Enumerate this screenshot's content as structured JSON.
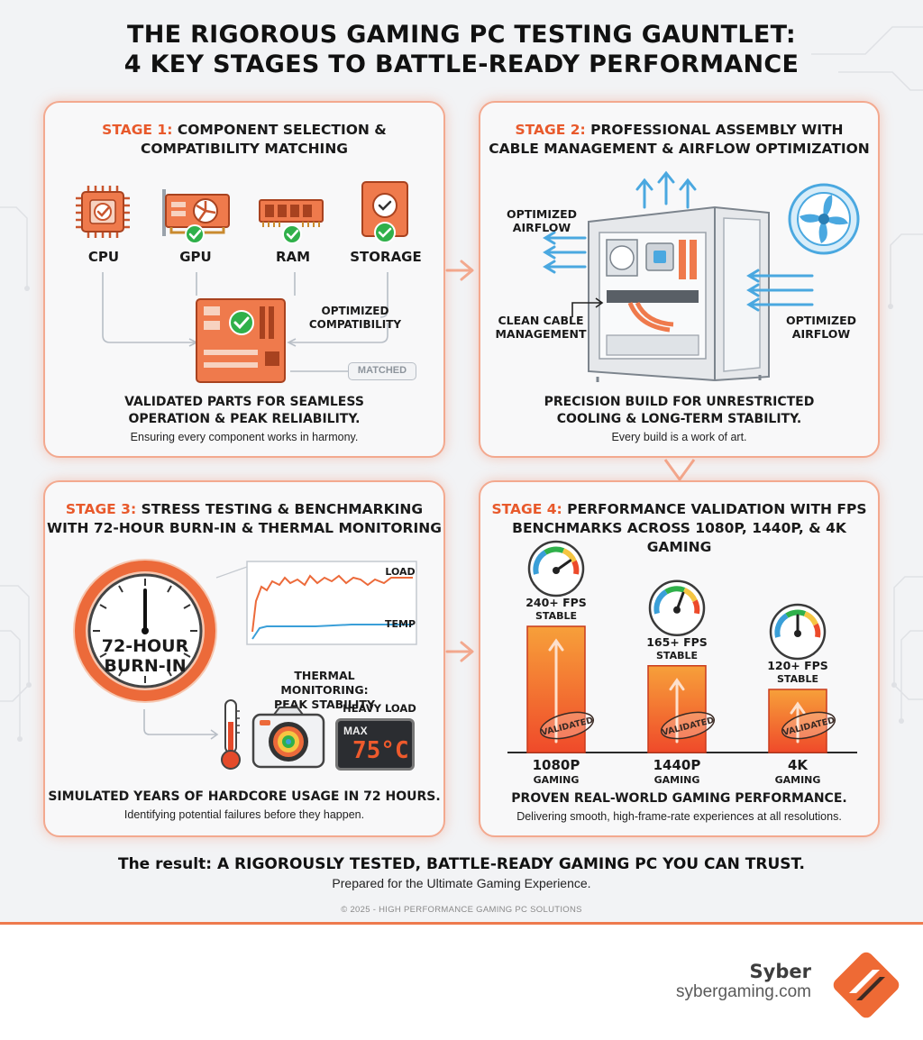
{
  "title": {
    "line1": "THE RIGOROUS GAMING PC TESTING GAUNTLET:",
    "line2": "4 KEY STAGES TO BATTLE-READY PERFORMANCE"
  },
  "stage1": {
    "tag": "STAGE 1:",
    "title_rest": "COMPONENT SELECTION &",
    "title_line2": "COMPATIBILITY MATCHING",
    "components": [
      "CPU",
      "GPU",
      "RAM",
      "STORAGE"
    ],
    "optimized_line1": "OPTIMIZED",
    "optimized_line2": "COMPATIBILITY",
    "matched": "MATCHED",
    "desc_line1": "VALIDATED PARTS FOR SEAMLESS",
    "desc_line2": "OPERATION & PEAK RELIABILITY.",
    "desc_sub": "Ensuring every component works in harmony."
  },
  "stage2": {
    "tag": "STAGE 2:",
    "title_rest": "PROFESSIONAL ASSEMBLY WITH",
    "title_line2": "CABLE MANAGEMENT & AIRFLOW OPTIMIZATION",
    "airflow_left_1": "OPTIMIZED",
    "airflow_left_2": "AIRFLOW",
    "cable_1": "CLEAN CABLE",
    "cable_2": "MANAGEMENT",
    "airflow_right_1": "OPTIMIZED",
    "airflow_right_2": "AIRFLOW",
    "desc_line1": "PRECISION BUILD FOR UNRESTRICTED",
    "desc_line2": "COOLING & LONG-TERM STABILITY.",
    "desc_sub": "Every build is a work of art."
  },
  "stage3": {
    "tag": "STAGE 3:",
    "title_rest": "STRESS TESTING & BENCHMARKING",
    "title_line2": "WITH 72-HOUR BURN-IN & THERMAL MONITORING",
    "clock_line1": "72-HOUR",
    "clock_line2": "BURN-IN",
    "graph_load": "LOAD",
    "graph_temp": "TEMP",
    "thermal_line1": "THERMAL MONITORING:",
    "thermal_line2": "PEAK STABILITY",
    "heavy_load": "HEAVY LOAD",
    "max": "MAX",
    "temp_readout": "75°C",
    "desc_line1": "SIMULATED YEARS OF HARDCORE USAGE IN 72 HOURS.",
    "desc_sub": "Identifying potential failures before they happen."
  },
  "stage4": {
    "tag": "STAGE 4:",
    "title_rest": "PERFORMANCE VALIDATION WITH FPS",
    "title_line2": "BENCHMARKS ACROSS 1080P, 1440P, & 4K GAMING",
    "bars": [
      {
        "fps": "240+ FPS",
        "stable": "STABLE",
        "res": "1080P",
        "gaming": "GAMING",
        "stamp": "VALIDATED",
        "value": 240
      },
      {
        "fps": "165+ FPS",
        "stable": "STABLE",
        "res": "1440P",
        "gaming": "GAMING",
        "stamp": "VALIDATED",
        "value": 165
      },
      {
        "fps": "120+ FPS",
        "stable": "STABLE",
        "res": "4K",
        "gaming": "GAMING",
        "stamp": "VALIDATED",
        "value": 120
      }
    ],
    "desc_line1": "PROVEN REAL-WORLD GAMING PERFORMANCE.",
    "desc_sub": "Delivering smooth, high-frame-rate experiences at all resolutions."
  },
  "result": {
    "lead": "The result:",
    "main": "A RIGOROUSLY TESTED, BATTLE-READY GAMING PC YOU CAN TRUST.",
    "sub": "Prepared for the Ultimate Gaming Experience."
  },
  "copyright": "© 2025 - HIGH PERFORMANCE GAMING PC SOLUTIONS",
  "brand": {
    "name": "Syber",
    "url": "sybergaming.com"
  },
  "colors": {
    "accent": "#e8592b",
    "check_green": "#2fb04a",
    "temp_blue": "#3a9fd8"
  }
}
